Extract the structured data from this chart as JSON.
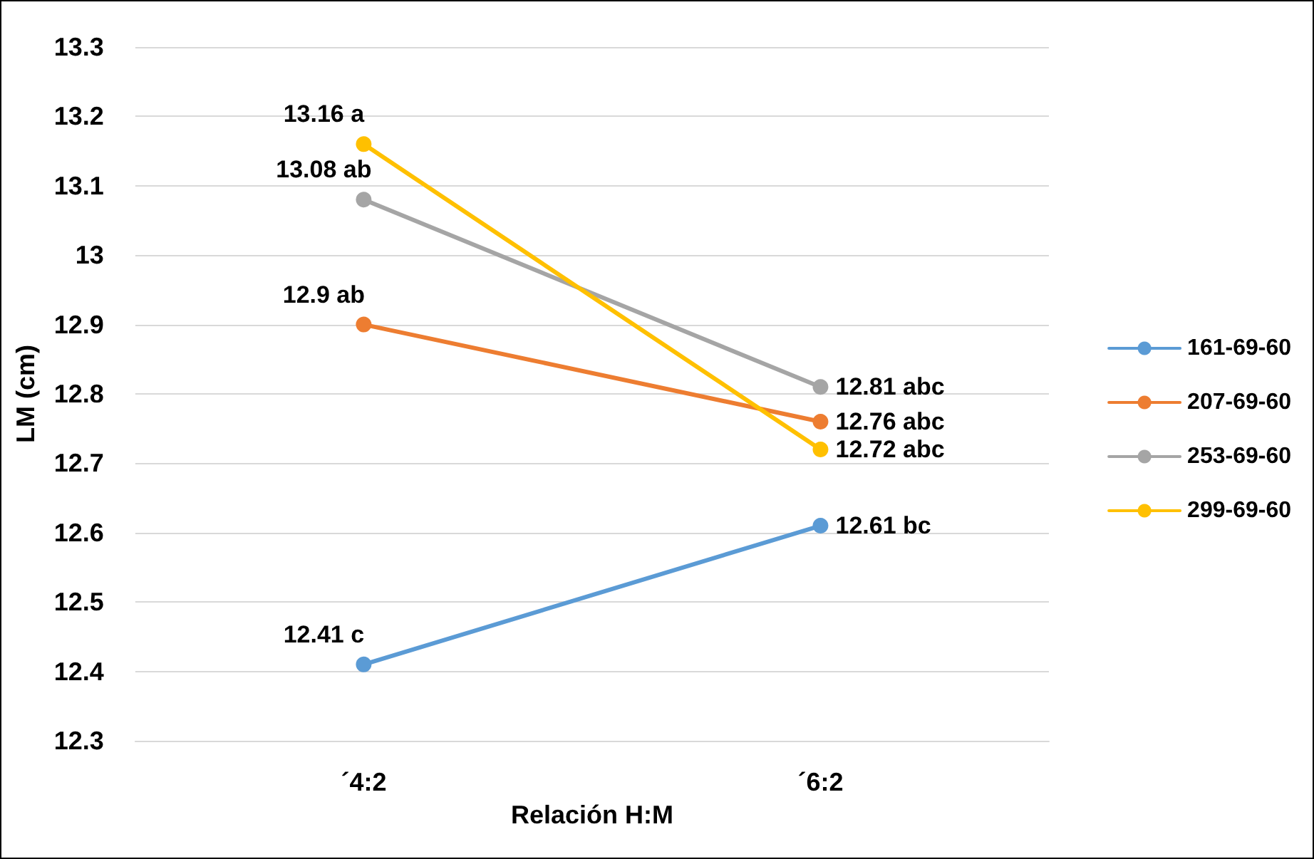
{
  "chart_data": {
    "type": "line",
    "xlabel": "Relación H:M",
    "ylabel": "LM (cm)",
    "categories": [
      "´4:2",
      "´6:2"
    ],
    "ylim": [
      12.3,
      13.3
    ],
    "yticks": [
      12.3,
      12.4,
      12.5,
      12.6,
      12.7,
      12.8,
      12.9,
      13,
      13.1,
      13.2,
      13.3
    ],
    "grid": "y",
    "legend": "right",
    "marker": "circle",
    "line_style": "solid",
    "series": [
      {
        "name": "161-69-60",
        "color": "#5b9bd5",
        "values": [
          12.41,
          12.61
        ],
        "value_labels": [
          "12.41 c",
          "12.61 bc"
        ]
      },
      {
        "name": "207-69-60",
        "color": "#ed7d31",
        "values": [
          12.9,
          12.76
        ],
        "value_labels": [
          "12.9 ab",
          "12.76 abc"
        ]
      },
      {
        "name": "253-69-60",
        "color": "#a5a5a5",
        "values": [
          13.08,
          12.81
        ],
        "value_labels": [
          "13.08 ab",
          "12.81 abc"
        ]
      },
      {
        "name": "299-69-60",
        "color": "#ffc000",
        "values": [
          13.16,
          12.72
        ],
        "value_labels": [
          "13.16 a",
          "12.72 abc"
        ]
      }
    ]
  }
}
